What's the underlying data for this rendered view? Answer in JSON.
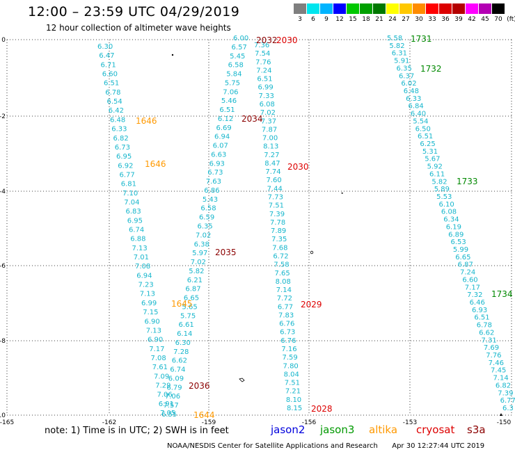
{
  "header": {
    "title": "12:00 – 23:59 UTC 04/29/2019",
    "subtitle": "12 hour collection of altimeter wave heights"
  },
  "scale": {
    "unit_label": "(ft)",
    "bins": [
      {
        "label": "3",
        "color": "#7f7f7f"
      },
      {
        "label": "6",
        "color": "#00e5ee"
      },
      {
        "label": "9",
        "color": "#00b4ff"
      },
      {
        "label": "12",
        "color": "#0000ff"
      },
      {
        "label": "15",
        "color": "#00c800"
      },
      {
        "label": "18",
        "color": "#00a000"
      },
      {
        "label": "21",
        "color": "#007800"
      },
      {
        "label": "24",
        "color": "#ffff00"
      },
      {
        "label": "27",
        "color": "#ffc800"
      },
      {
        "label": "30",
        "color": "#ff8c00"
      },
      {
        "label": "33",
        "color": "#ff0000"
      },
      {
        "label": "36",
        "color": "#dc0000"
      },
      {
        "label": "39",
        "color": "#b40000"
      },
      {
        "label": "42",
        "color": "#ff00ff"
      },
      {
        "label": "45",
        "color": "#b400b4"
      },
      {
        "label": "70",
        "color": "#000000"
      }
    ]
  },
  "axes": {
    "x_ticks": [
      "-165",
      "-162",
      "-159",
      "-156",
      "-153",
      "-150"
    ],
    "y_ticks": [
      "0",
      "-2",
      "-4",
      "-6",
      "-8",
      "-10"
    ]
  },
  "tracks": [
    {
      "name": "track-a",
      "values": [
        "6.30",
        "6.47",
        "6.71",
        "6.60",
        "6.51",
        "6.78",
        "6.54",
        "6.42",
        "6.48",
        "6.33",
        "6.82",
        "6.73",
        "6.95",
        "6.92",
        "6.77",
        "6.81",
        "7.10",
        "7.04",
        "6.83",
        "6.95",
        "6.74",
        "6.88",
        "7.13",
        "7.01",
        "7.08",
        "6.94",
        "7.23",
        "7.13",
        "6.99",
        "7.15",
        "6.90",
        "7.13",
        "6.90",
        "7.17",
        "7.08",
        "7.61",
        "7.09",
        "7.29",
        "7.06",
        "6.91",
        "7.05"
      ]
    },
    {
      "name": "track-b",
      "values": [
        "6.00",
        "6.57",
        "5.45",
        "6.58",
        "5.84",
        "5.75",
        "7.06",
        "5.46",
        "6.51",
        "6.12",
        "6.69",
        "6.94",
        "6.07",
        "6.63",
        "6.93",
        "6.73",
        "7.63",
        "6.86",
        "5.43",
        "6.58",
        "6.59",
        "6.35",
        "7.02",
        "6.38",
        "5.97",
        "7.02",
        "5.82",
        "6.21",
        "6.87",
        "6.65",
        "5.65",
        "5.75",
        "6.61",
        "6.14",
        "6.30",
        "7.28",
        "6.62",
        "6.74",
        "6.09",
        "6.79",
        "7.06",
        "7.57",
        "6.55"
      ]
    },
    {
      "name": "track-c",
      "values": [
        "7.36",
        "7.54",
        "7.76",
        "7.24",
        "6.51",
        "6.99",
        "7.33",
        "6.08",
        "7.02",
        "7.37",
        "7.87",
        "7.00",
        "8.13",
        "7.27",
        "8.47",
        "7.74",
        "7.60",
        "7.44",
        "7.73",
        "7.51",
        "7.39",
        "7.78",
        "7.89",
        "7.35",
        "7.68",
        "6.72",
        "7.58",
        "7.65",
        "8.08",
        "7.14",
        "7.72",
        "6.77",
        "7.83",
        "6.76",
        "6.73",
        "6.76",
        "7.16",
        "7.59",
        "7.80",
        "8.04",
        "7.51",
        "7.21",
        "8.10",
        "8.15"
      ]
    },
    {
      "name": "track-d",
      "values": [
        "5.58",
        "5.82",
        "6.31",
        "5.91",
        "6.35",
        "6.37",
        "6.02",
        "6.48",
        "6.33",
        "6.84",
        "6.40",
        "5.54",
        "6.50",
        "6.51",
        "6.25",
        "5.31",
        "5.67",
        "5.92",
        "6.11",
        "5.82",
        "5.89",
        "5.53",
        "6.10",
        "6.08",
        "6.34",
        "6.19",
        "6.89",
        "6.53",
        "5.99",
        "6.65",
        "6.87",
        "7.24",
        "6.60",
        "7.17",
        "7.32",
        "6.46",
        "6.93",
        "6.51",
        "6.78",
        "6.62",
        "7.31",
        "7.69",
        "7.76",
        "7.46",
        "7.45",
        "7.14",
        "6.82",
        "7.39",
        "6.77",
        "6.3"
      ]
    }
  ],
  "time_labels": [
    {
      "text": "2032",
      "color": "#8b0000"
    },
    {
      "text": "2030",
      "color": "#dd0000"
    },
    {
      "text": "1731",
      "color": "#008800"
    },
    {
      "text": "1732",
      "color": "#008800"
    },
    {
      "text": "1646",
      "color": "#ff9900"
    },
    {
      "text": "2034",
      "color": "#8b0000"
    },
    {
      "text": "1646",
      "color": "#ff9900"
    },
    {
      "text": "2030",
      "color": "#dd0000"
    },
    {
      "text": "1733",
      "color": "#008800"
    },
    {
      "text": "2035",
      "color": "#8b0000"
    },
    {
      "text": "1734",
      "color": "#008800"
    },
    {
      "text": "1645",
      "color": "#ff9900"
    },
    {
      "text": "2029",
      "color": "#dd0000"
    },
    {
      "text": "2036",
      "color": "#8b0000"
    },
    {
      "text": "1644",
      "color": "#ff9900"
    },
    {
      "text": "2028",
      "color": "#dd0000"
    }
  ],
  "footer": {
    "note": "note:  1) Time is in UTC;  2) SWH is in feet",
    "missions": [
      {
        "name": "jason2",
        "color": "#0000dd"
      },
      {
        "name": "jason3",
        "color": "#009900"
      },
      {
        "name": "altika",
        "color": "#ff9900"
      },
      {
        "name": "cryosat",
        "color": "#dd0000"
      },
      {
        "name": "s3a",
        "color": "#8b0000"
      }
    ],
    "credit": "NOAA/NESDIS Center for Satellite Applications and Research",
    "timestamp": "Apr 30 12:27:44 UTC 2019"
  }
}
